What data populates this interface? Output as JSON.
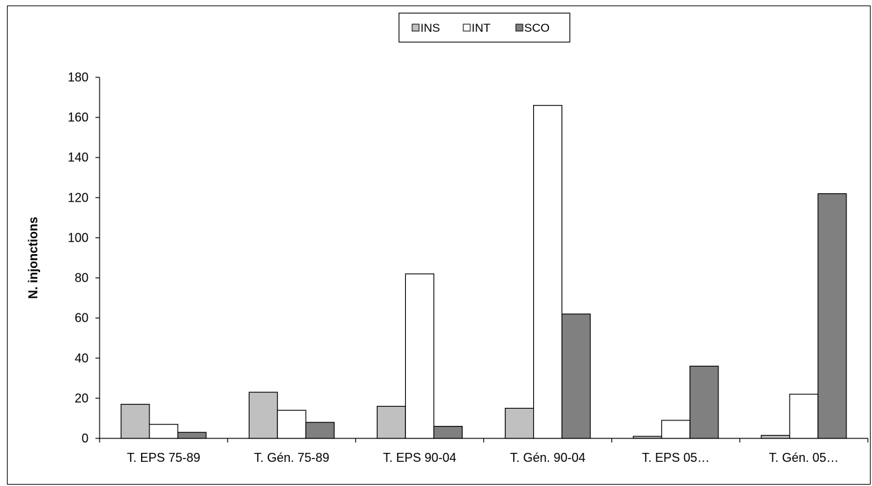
{
  "chart_data": {
    "type": "bar",
    "title": "",
    "xlabel": "",
    "ylabel": "N. injonctions",
    "ylim": [
      0,
      180
    ],
    "yticks": [
      0,
      20,
      40,
      60,
      80,
      100,
      120,
      140,
      160,
      180
    ],
    "grid": false,
    "legend_position": "top-center",
    "categories": [
      "T. EPS 75-89",
      "T. Gén. 75-89",
      "T. EPS 90-04",
      "T. Gén. 90-04",
      "T. EPS 05…",
      "T. Gén. 05…"
    ],
    "series": [
      {
        "name": "INS",
        "color": "#c0c0c0",
        "values": [
          17,
          23,
          16,
          15,
          1,
          1.5
        ]
      },
      {
        "name": "INT",
        "color": "#ffffff",
        "values": [
          7,
          14,
          82,
          166,
          9,
          22
        ]
      },
      {
        "name": "SCO",
        "color": "#808080",
        "values": [
          3,
          8,
          6,
          62,
          36,
          122
        ]
      }
    ]
  }
}
